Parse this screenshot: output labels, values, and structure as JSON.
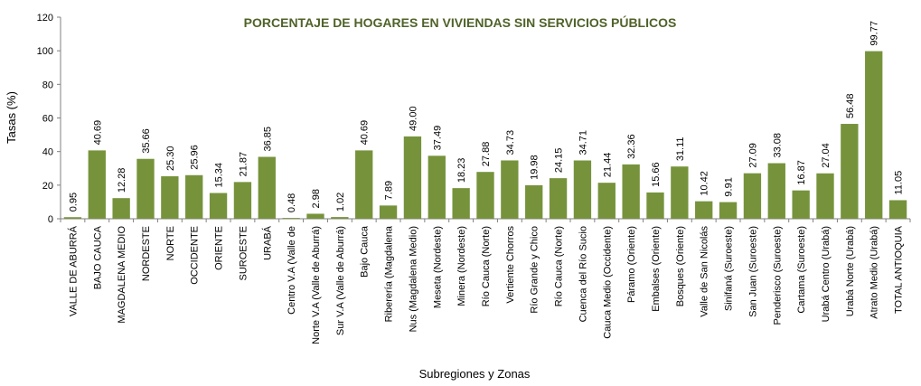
{
  "chart_data": {
    "type": "bar",
    "title": "PORCENTAJE DE HOGARES EN VIVIENDAS SIN SERVICIOS PÚBLICOS",
    "xlabel": "Subregiones y Zonas",
    "ylabel": "Tasas (%)",
    "ylim": [
      0,
      120
    ],
    "yticks": [
      0,
      20,
      40,
      60,
      80,
      100,
      120
    ],
    "grid": false,
    "bar_color": "#76933c",
    "title_color": "#4f6228",
    "categories": [
      "VALLE DE ABURRÁ",
      "BAJO CAUCA",
      "MAGDALENA MEDIO",
      "NORDESTE",
      "NORTE",
      "OCCIDENTE",
      "ORIENTE",
      "SUROESTE",
      "URABÁ",
      "Centro V.A (Valle de",
      "Norte V.A (Valle de Aburrá)",
      "Sur V.A (Valle de Aburrá)",
      "Bajo Cauca",
      "Riberería  (Magdalena",
      "Nus  (Magdalena Medio)",
      "Meseta  (Nordeste)",
      "Minera  (Nordeste)",
      "Río Cauca  (Norte)",
      "Vertiente Chorros",
      "Río Grande y Chico",
      "Río Cauca (Norte)",
      "Cuenca del Río Sucio",
      "Cauca Medio  (Occidente)",
      "Páramo  (Oriente)",
      "Embalses (Oriente)",
      "Bosques  (Oriente)",
      "Valle de San Nicolás",
      "Sinifaná  (Suroeste)",
      "San Juan  (Suroeste)",
      "Penderisco  (Suroeste)",
      "Cartama  (Suroeste)",
      "Urabá Centro  (Urabá)",
      "Urabá Norte  (Urabá)",
      "Atrato Medio  (Urabá)",
      "TOTAL ANTIOQUIA"
    ],
    "values": [
      0.95,
      40.69,
      12.28,
      35.66,
      25.3,
      25.96,
      15.34,
      21.87,
      36.85,
      0.48,
      2.98,
      1.02,
      40.69,
      7.89,
      49.0,
      37.49,
      18.23,
      27.88,
      34.73,
      19.98,
      24.15,
      34.71,
      21.44,
      32.36,
      15.66,
      31.11,
      10.42,
      9.91,
      27.09,
      33.08,
      16.87,
      27.04,
      56.48,
      99.77,
      11.05
    ],
    "value_labels": [
      "0.95",
      "40.69",
      "12.28",
      "35.66",
      "25.30",
      "25.96",
      "15.34",
      "21.87",
      "36.85",
      "0.48",
      "2.98",
      "1.02",
      "40.69",
      "7.89",
      "49.00",
      "37.49",
      "18.23",
      "27.88",
      "34.73",
      "19.98",
      "24.15",
      "34.71",
      "21.44",
      "32.36",
      "15.66",
      "31.11",
      "10.42",
      "9.91",
      "27.09",
      "33.08",
      "16.87",
      "27.04",
      "56.48",
      "99.77",
      "11.05"
    ]
  }
}
